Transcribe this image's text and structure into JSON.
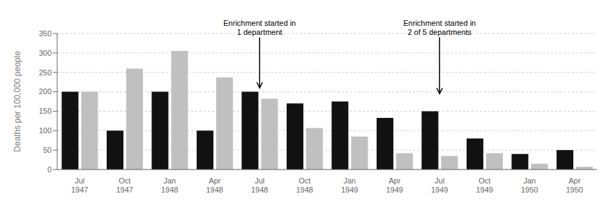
{
  "chart_data": {
    "type": "bar",
    "categories": [
      "Jul\n1947",
      "Oct\n1947",
      "Jan\n1948",
      "Apr\n1948",
      "Jul\n1948",
      "Oct\n1948",
      "Jan\n1949",
      "Apr\n1949",
      "Jul\n1949",
      "Oct\n1949",
      "Jan\n1950",
      "Apr\n1950"
    ],
    "series": [
      {
        "color": "#111111",
        "values": [
          200,
          100,
          200,
          100,
          200,
          170,
          175,
          133,
          150,
          80,
          40,
          50
        ]
      },
      {
        "color": "#c0c0c0",
        "values": [
          200,
          260,
          305,
          237,
          182,
          107,
          85,
          42,
          35,
          42,
          15,
          7
        ]
      }
    ],
    "ylabel": "Deaths per 100,000 people",
    "ylim": [
      0,
      350
    ],
    "yticks": [
      0,
      50,
      100,
      150,
      200,
      250,
      300,
      350
    ],
    "grid": true,
    "annotations": [
      {
        "text": "Enrichment started in\n1 department",
        "x": "Jul\n1948",
        "y": 340,
        "arrow_tip_y": 210
      },
      {
        "text": "Enrichment started in\n2 of 5 departments",
        "x": "Jul\n1949",
        "y": 340,
        "arrow_tip_y": 195
      }
    ]
  }
}
